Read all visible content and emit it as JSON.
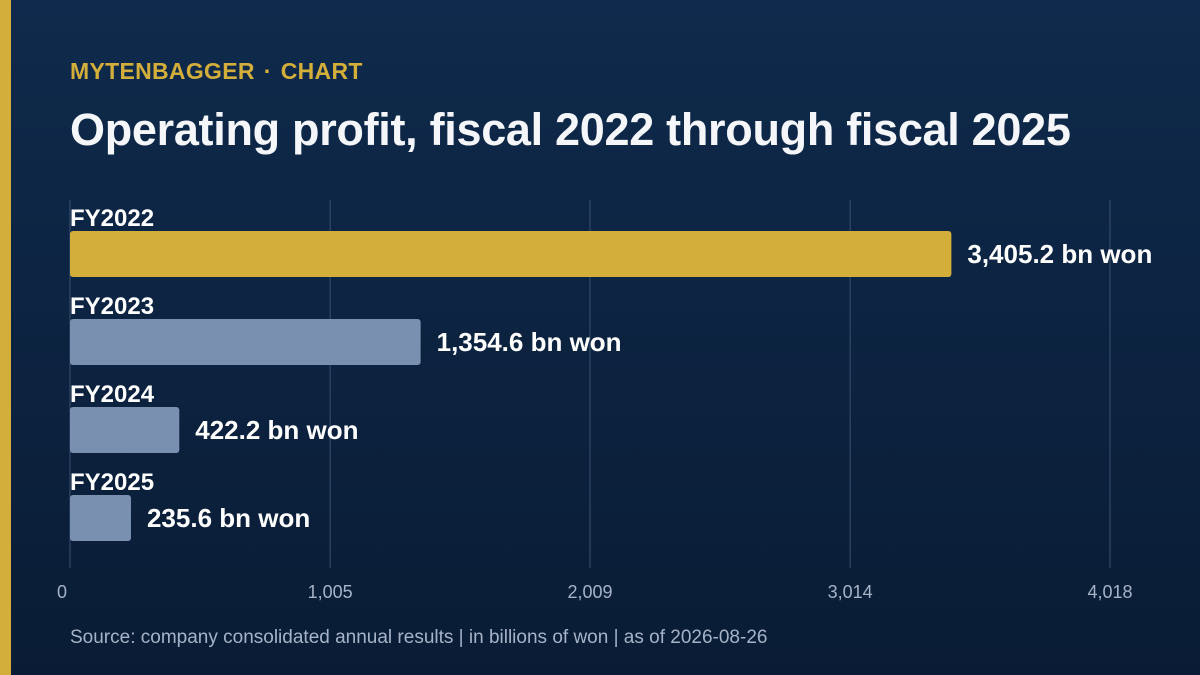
{
  "header": {
    "brand": "MYTENBAGGER",
    "separator": "·",
    "section": "CHART",
    "title": "Operating profit, fiscal 2022 through fiscal 2025"
  },
  "footer": {
    "source": "Source: company consolidated annual results | in billions of won | as of 2026-08-26"
  },
  "colors": {
    "accent": "#d3ae3b",
    "bar_secondary": "#7a90b1",
    "background_top": "#0f2a4c",
    "background_bottom": "#0a1c35",
    "gridline": "#3a5070",
    "tick_text": "#a5b3c8"
  },
  "chart_data": {
    "type": "bar",
    "orientation": "horizontal",
    "categories": [
      "FY2022",
      "FY2023",
      "FY2024",
      "FY2025"
    ],
    "values": [
      3405.2,
      1354.6,
      422.2,
      235.6
    ],
    "value_labels": [
      "3,405.2 bn won",
      "1,354.6 bn won",
      "422.2 bn won",
      "235.6 bn won"
    ],
    "highlight_index": 0,
    "xlim": [
      0,
      4018
    ],
    "x_ticks": [
      0,
      1005,
      2009,
      3014,
      4018
    ],
    "x_tick_labels": [
      "0",
      "1,005",
      "2,009",
      "3,014",
      "4,018"
    ],
    "grid": true
  }
}
